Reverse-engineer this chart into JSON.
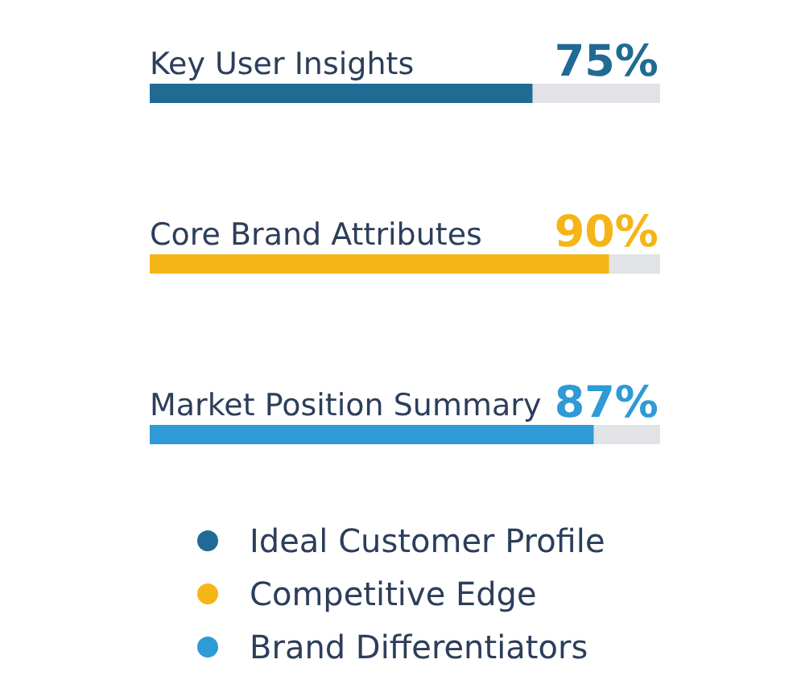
{
  "chart_data": {
    "type": "bar",
    "orientation": "horizontal",
    "categories": [
      "Key User Insights",
      "Core Brand Attributes",
      "Market Position Summary"
    ],
    "xlim": [
      0,
      100
    ],
    "legend": "bottom",
    "series": [
      {
        "name": "Ideal Customer Profile",
        "color": "#1f6b94",
        "values": [
          75,
          null,
          null
        ],
        "value_labels": [
          "75%",
          null,
          null
        ]
      },
      {
        "name": "Competitive Edge",
        "color": "#f5b517",
        "values": [
          null,
          90,
          null
        ],
        "value_labels": [
          null,
          "90%",
          null
        ]
      },
      {
        "name": "Brand Differentiators",
        "color": "#2e9ad6",
        "values": [
          null,
          null,
          87
        ],
        "value_labels": [
          null,
          null,
          "87%"
        ]
      }
    ]
  }
}
